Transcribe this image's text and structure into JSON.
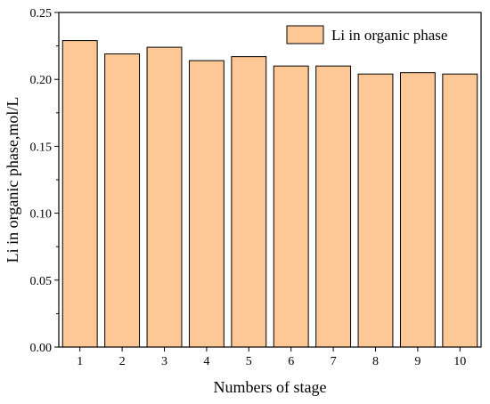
{
  "chart_data": {
    "type": "bar",
    "title": "",
    "xlabel": "Numbers of stage",
    "ylabel": "Li in organic phase,mol/L",
    "categories": [
      "1",
      "2",
      "3",
      "4",
      "5",
      "6",
      "7",
      "8",
      "9",
      "10"
    ],
    "series": [
      {
        "name": "Li in organic phase",
        "values": [
          0.229,
          0.219,
          0.224,
          0.214,
          0.217,
          0.21,
          0.21,
          0.204,
          0.205,
          0.204
        ],
        "color": "#FDC896"
      }
    ],
    "ylim": [
      0,
      0.25
    ],
    "yticks": [
      "0.00",
      "0.05",
      "0.10",
      "0.15",
      "0.20",
      "0.25"
    ],
    "grid": false,
    "legend_position": "top-right"
  }
}
